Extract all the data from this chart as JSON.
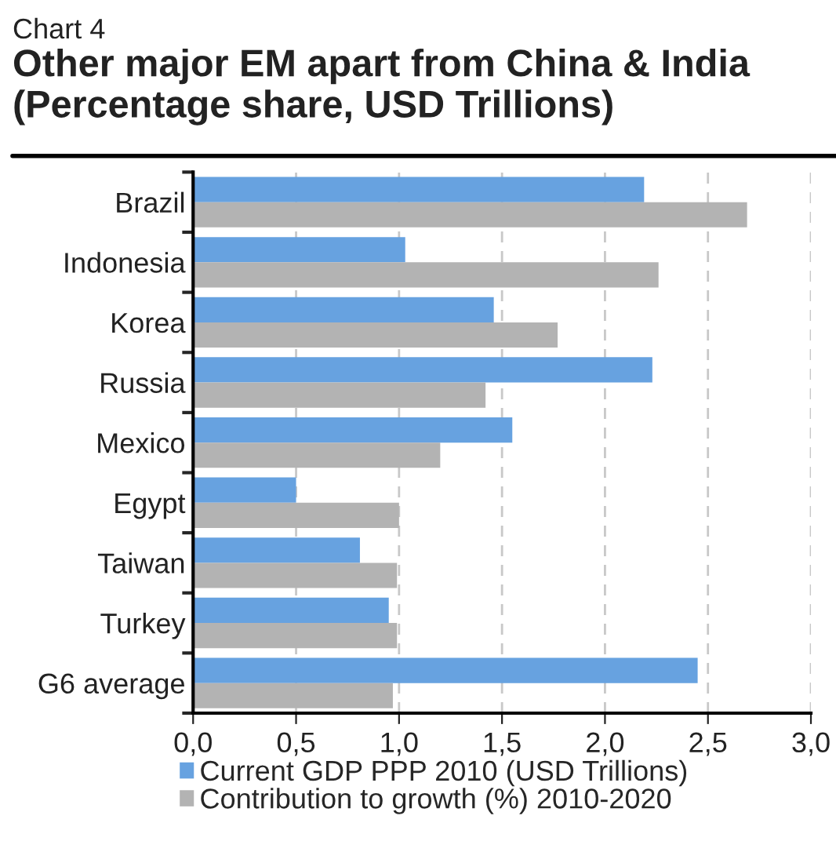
{
  "chart_data": {
    "type": "bar",
    "orientation": "horizontal",
    "title": "Other major EM apart from China & India (Percentage share, USD Trillions)",
    "annotations": [
      "Chart 4"
    ],
    "categories": [
      "Brazil",
      "Indonesia",
      "Korea",
      "Russia",
      "Mexico",
      "Egypt",
      "Taiwan",
      "Turkey",
      "G6 average"
    ],
    "series": [
      {
        "name": "Current GDP PPP 2010 (USD Trillions)",
        "color": "#67a2e0",
        "values": [
          2.19,
          1.03,
          1.46,
          2.23,
          1.55,
          0.5,
          0.81,
          0.95,
          2.45
        ]
      },
      {
        "name": "Contribution to growth (%) 2010-2020",
        "color": "#b3b3b3",
        "values": [
          2.69,
          2.26,
          1.77,
          1.42,
          1.2,
          1.0,
          0.99,
          0.99,
          0.97
        ]
      }
    ],
    "xlim": [
      0,
      3
    ],
    "xticks": [
      {
        "value": 0,
        "label": "0,0"
      },
      {
        "value": 0.5,
        "label": "0,5"
      },
      {
        "value": 1,
        "label": "1,0"
      },
      {
        "value": 1.5,
        "label": "1,5"
      },
      {
        "value": 2,
        "label": "2,0"
      },
      {
        "value": 2.5,
        "label": "2,5"
      },
      {
        "value": 3,
        "label": "3,0"
      }
    ],
    "grid": "x",
    "legend": "bottom"
  }
}
